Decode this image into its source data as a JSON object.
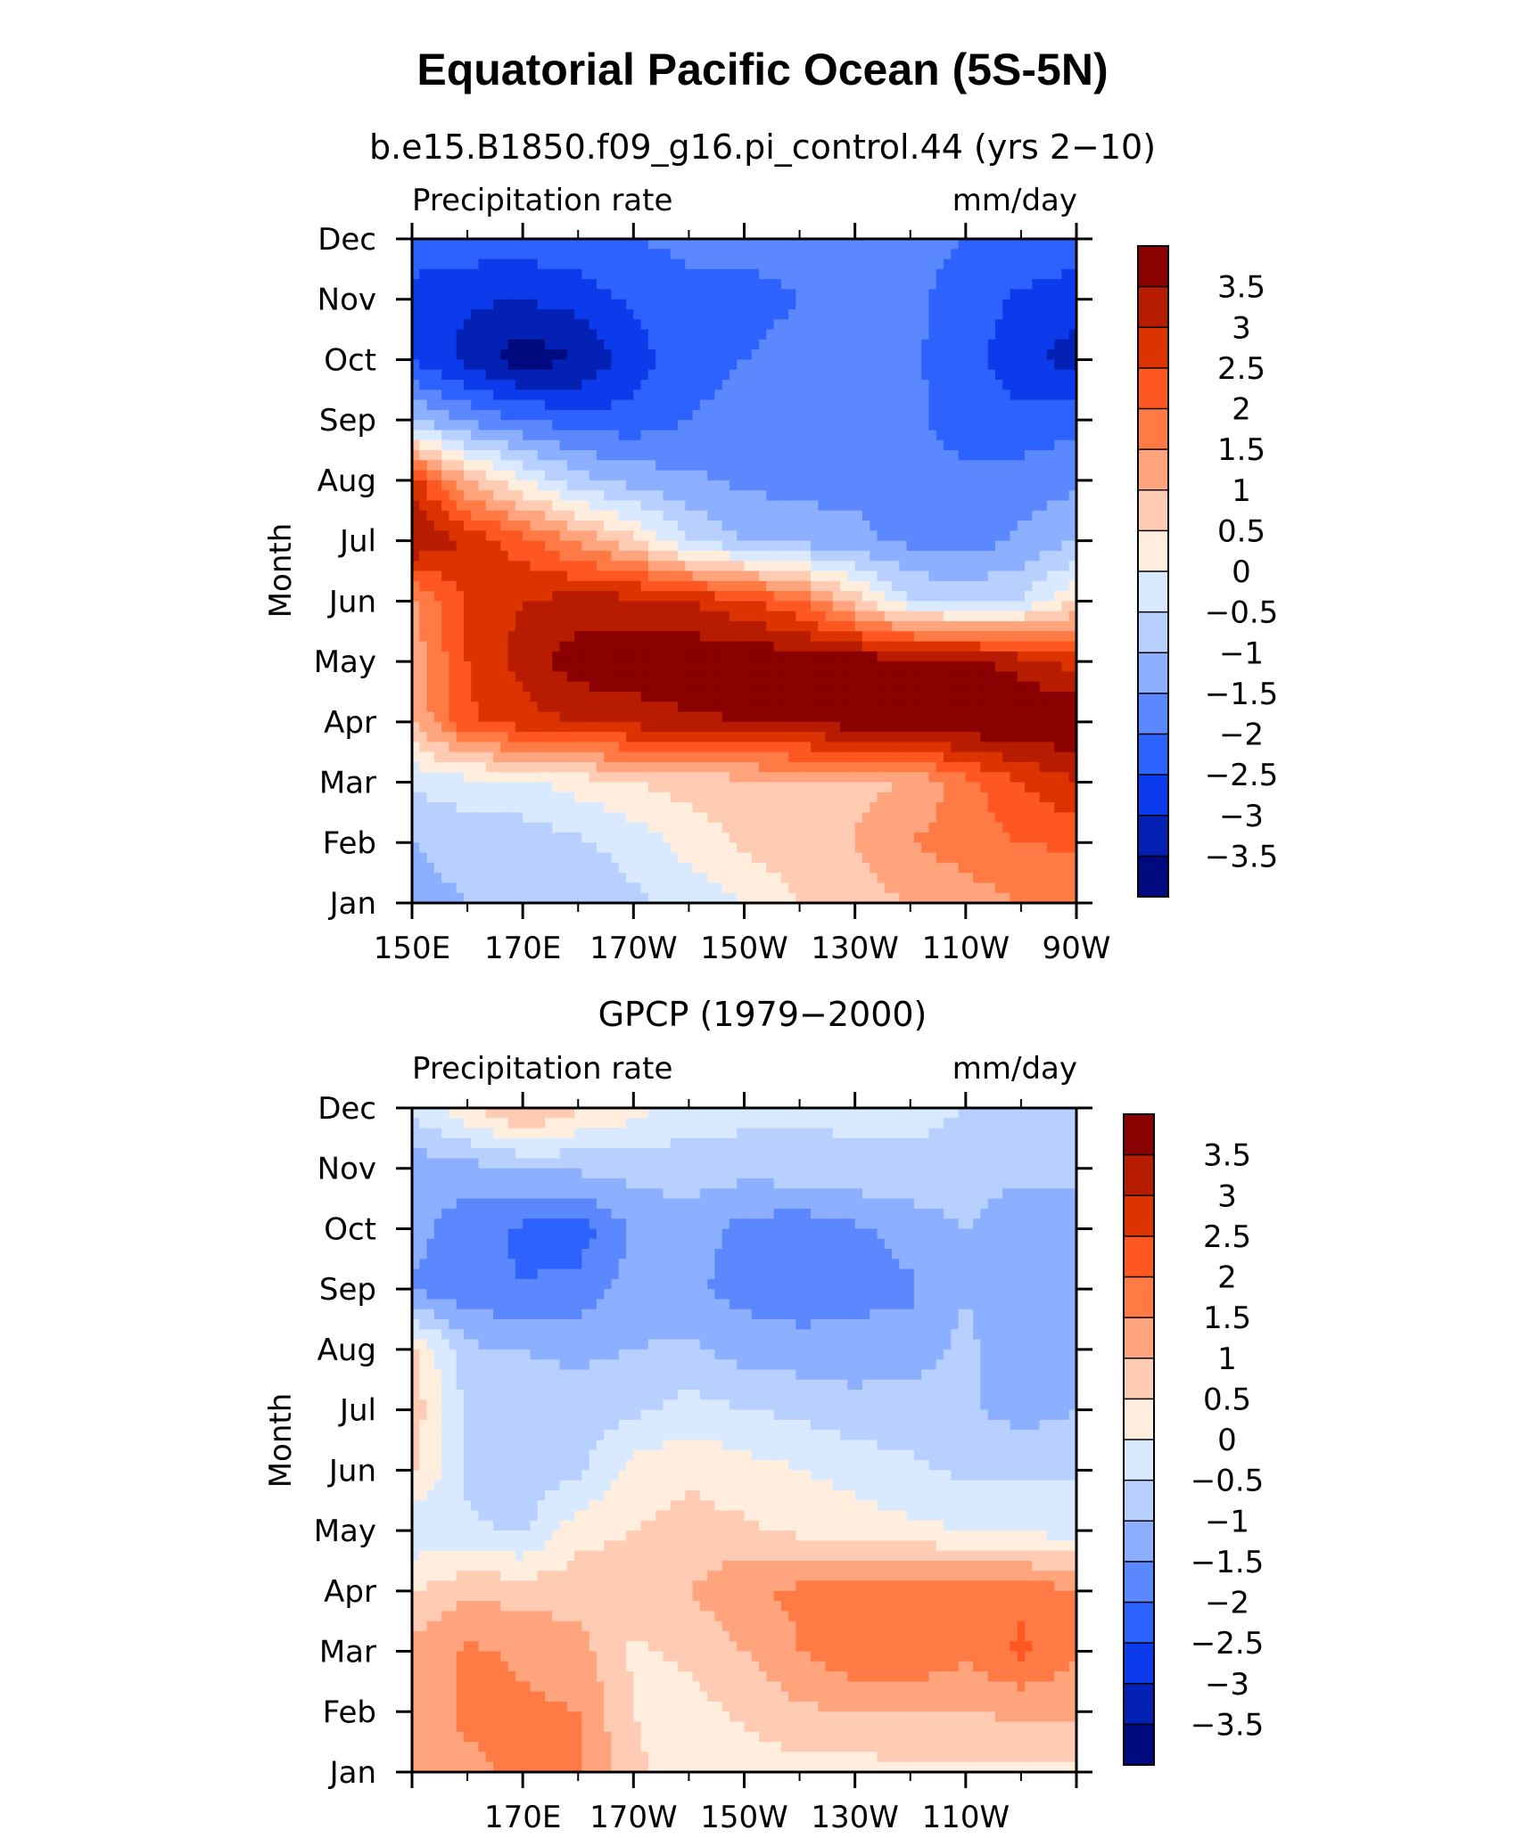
{
  "figure": {
    "title": "Equatorial Pacific Ocean (5S-5N)"
  },
  "colorbar": {
    "levels": [
      "3.5",
      "3",
      "2.5",
      "2",
      "1.5",
      "1",
      "0.5",
      "0",
      "−0.5",
      "−1",
      "−1.5",
      "−2",
      "−2.5",
      "−3",
      "−3.5"
    ],
    "colors": [
      "#8b0000",
      "#b81c00",
      "#dd3300",
      "#ff5722",
      "#ff7a45",
      "#ffa47c",
      "#ffcbb2",
      "#ffeede",
      "#d9e9ff",
      "#b8d0ff",
      "#8cb0ff",
      "#5b88ff",
      "#2e62ff",
      "#0c3bec",
      "#0421b5",
      "#000a80"
    ]
  },
  "chart_data": [
    {
      "type": "heatmap",
      "title": "b.e15.B1850.f09_g16.pi_control.44 (yrs 2−10)",
      "left_label": "Precipitation rate",
      "right_label": "mm/day",
      "ylabel": "Month",
      "x_tick_labels": [
        "150E",
        "170E",
        "170W",
        "150W",
        "130W",
        "110W",
        "90W"
      ],
      "y_tick_labels": [
        "Jan",
        "Feb",
        "Mar",
        "Apr",
        "May",
        "Jun",
        "Jul",
        "Aug",
        "Sep",
        "Oct",
        "Nov",
        "Dec"
      ],
      "x": [
        150,
        160,
        170,
        180,
        190,
        200,
        210,
        220,
        230,
        240,
        250,
        260,
        270
      ],
      "y": [
        1,
        2,
        3,
        4,
        5,
        6,
        7,
        8,
        9,
        10,
        11,
        12
      ],
      "xlim": [
        150,
        270
      ],
      "ylim": [
        1,
        12
      ],
      "units": "mm/day",
      "z": [
        [
          -1.2,
          -1.0,
          -0.8,
          -0.8,
          -0.6,
          -0.3,
          0.0,
          0.5,
          0.8,
          1.0,
          1.2,
          1.5,
          1.6
        ],
        [
          -1.0,
          -0.8,
          -0.8,
          -0.6,
          -0.3,
          0.2,
          0.6,
          0.8,
          1.0,
          1.5,
          1.8,
          2.0,
          2.1
        ],
        [
          -0.4,
          -0.2,
          -0.1,
          0.2,
          0.5,
          0.7,
          0.8,
          0.9,
          0.9,
          1.0,
          1.8,
          2.5,
          3.0
        ],
        [
          1.0,
          2.4,
          2.8,
          3.0,
          3.2,
          3.4,
          3.5,
          3.6,
          3.8,
          3.9,
          4.0,
          4.0,
          4.0
        ],
        [
          1.2,
          2.5,
          3.2,
          3.8,
          3.9,
          3.9,
          3.9,
          3.9,
          3.8,
          3.8,
          3.6,
          3.3,
          2.8
        ],
        [
          1.3,
          2.6,
          3.0,
          3.2,
          3.2,
          3.0,
          2.6,
          2.0,
          0.8,
          -0.5,
          -0.6,
          -0.5,
          0.5
        ],
        [
          3.6,
          2.9,
          2.2,
          1.4,
          0.6,
          -0.5,
          -1.0,
          -1.2,
          -1.4,
          -1.6,
          -1.8,
          -1.4,
          -1.0
        ],
        [
          2.8,
          1.0,
          0.0,
          -0.8,
          -1.2,
          -1.4,
          -1.6,
          -1.7,
          -1.6,
          -1.8,
          -1.9,
          -1.8,
          -1.6
        ],
        [
          -1.0,
          -1.6,
          -2.0,
          -2.3,
          -2.3,
          -2.0,
          -1.9,
          -1.8,
          -1.7,
          -1.9,
          -2.2,
          -2.3,
          -2.2
        ],
        [
          -2.5,
          -3.2,
          -3.8,
          -3.5,
          -2.8,
          -2.1,
          -2.0,
          -1.9,
          -1.8,
          -1.9,
          -2.3,
          -2.9,
          -3.2
        ],
        [
          -2.6,
          -2.9,
          -3.0,
          -2.8,
          -2.4,
          -2.1,
          -2.1,
          -2.0,
          -1.9,
          -1.9,
          -2.2,
          -2.6,
          -2.8
        ],
        [
          -2.3,
          -2.2,
          -2.2,
          -2.1,
          -2.0,
          -1.9,
          -1.9,
          -1.9,
          -1.9,
          -1.9,
          -2.0,
          -2.1,
          -2.2
        ]
      ]
    },
    {
      "type": "heatmap",
      "title": "GPCP (1979−2000)",
      "left_label": "Precipitation rate",
      "right_label": "mm/day",
      "ylabel": "Month",
      "x_tick_labels": [
        "170E",
        "170W",
        "150W",
        "130W",
        "110W"
      ],
      "y_tick_labels": [
        "Jan",
        "Feb",
        "Mar",
        "Apr",
        "May",
        "Jun",
        "Jul",
        "Aug",
        "Sep",
        "Oct",
        "Nov",
        "Dec"
      ],
      "x": [
        150,
        160,
        170,
        180,
        190,
        200,
        210,
        220,
        230,
        240,
        250,
        260,
        270
      ],
      "y": [
        1,
        2,
        3,
        4,
        5,
        6,
        7,
        8,
        9,
        10,
        11,
        12
      ],
      "xlim": [
        150,
        270
      ],
      "ylim": [
        1,
        12
      ],
      "units": "mm/day",
      "z": [
        [
          1.2,
          1.4,
          1.6,
          1.6,
          0.6,
          0.2,
          0.2,
          0.3,
          0.3,
          0.4,
          0.4,
          0.3,
          0.3
        ],
        [
          1.2,
          1.6,
          1.6,
          1.5,
          0.5,
          0.3,
          0.6,
          0.9,
          1.0,
          1.0,
          1.0,
          1.1,
          1.2
        ],
        [
          1.2,
          1.6,
          1.4,
          1.2,
          0.4,
          0.6,
          1.0,
          1.5,
          1.9,
          2.0,
          1.6,
          2.1,
          1.5
        ],
        [
          0.5,
          0.9,
          0.8,
          0.8,
          0.9,
          1.0,
          1.4,
          1.6,
          1.8,
          1.9,
          1.8,
          1.9,
          1.5
        ],
        [
          -0.4,
          -0.4,
          -0.6,
          0.3,
          0.5,
          0.7,
          0.6,
          0.4,
          0.3,
          0.1,
          0.0,
          -0.1,
          -0.2
        ],
        [
          0.6,
          -0.6,
          -0.8,
          -0.6,
          0.2,
          0.4,
          0.2,
          0.0,
          -0.2,
          -0.4,
          -0.6,
          -0.6,
          -0.6
        ],
        [
          0.8,
          -0.6,
          -0.8,
          -0.8,
          -0.6,
          -0.3,
          -0.5,
          -0.6,
          -0.8,
          -0.8,
          -0.9,
          -1.2,
          -1.0
        ],
        [
          0.6,
          -0.9,
          -1.0,
          -1.1,
          -1.0,
          -0.9,
          -1.2,
          -1.3,
          -1.3,
          -1.2,
          -0.9,
          -1.3,
          -1.4
        ],
        [
          -1.6,
          -1.8,
          -2.0,
          -1.8,
          -1.3,
          -1.4,
          -1.7,
          -1.8,
          -1.7,
          -1.6,
          -1.0,
          -1.4,
          -1.4
        ],
        [
          -1.3,
          -1.8,
          -2.1,
          -2.3,
          -1.4,
          -1.2,
          -1.7,
          -1.8,
          -1.6,
          -1.3,
          -1.0,
          -1.5,
          -1.5
        ],
        [
          -1.3,
          -1.2,
          -1.0,
          -0.9,
          -0.8,
          -0.8,
          -0.8,
          -0.7,
          -0.6,
          -0.6,
          -0.6,
          -0.8,
          -0.8
        ],
        [
          -0.4,
          0.4,
          1.2,
          0.6,
          0.2,
          -0.2,
          -0.3,
          -0.4,
          -0.4,
          -0.4,
          -0.5,
          -0.5,
          -0.5
        ]
      ]
    }
  ]
}
